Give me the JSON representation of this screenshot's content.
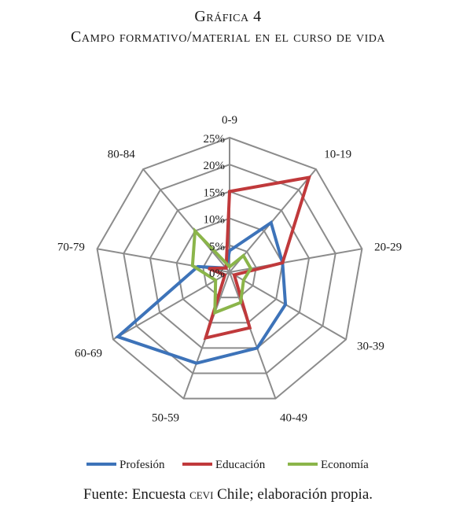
{
  "figure": {
    "number": "Gráfica 4",
    "title": "Campo formativo/material en el curso de vida"
  },
  "source": {
    "prefix": "Fuente: Encuesta ",
    "org": "cevi",
    "suffix": " Chile; elaboración propia."
  },
  "colors": {
    "grid": "#8c8c8c",
    "Profesión": "#3d73b9",
    "Educación": "#c0393b",
    "Economía": "#8bb54a"
  },
  "chart_data": {
    "type": "radar",
    "title": "",
    "categories": [
      "0-9",
      "10-19",
      "20-29",
      "30-39",
      "40-49",
      "50-59",
      "60-69",
      "70-79",
      "80-84"
    ],
    "radial_ticks": [
      "0%",
      "5%",
      "10%",
      "15%",
      "20%",
      "25%"
    ],
    "rmax": 25,
    "grid": true,
    "legend_position": "bottom",
    "series": [
      {
        "name": "Profesión",
        "values": [
          4,
          12,
          10,
          12,
          15,
          18,
          24,
          6,
          1
        ]
      },
      {
        "name": "Educación",
        "values": [
          15,
          23,
          10,
          1,
          11,
          13,
          1,
          4,
          1
        ]
      },
      {
        "name": "Economía",
        "values": [
          1,
          4,
          4,
          3,
          6,
          8,
          3,
          7,
          10
        ]
      }
    ]
  }
}
